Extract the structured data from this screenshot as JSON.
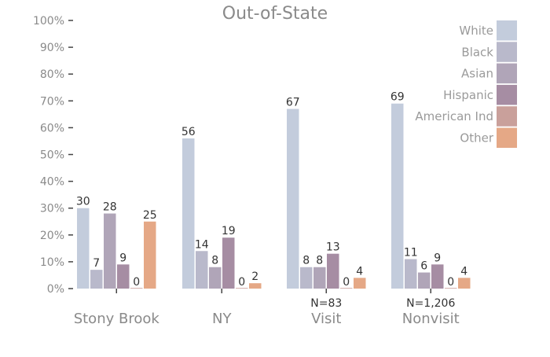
{
  "chart_data": {
    "type": "bar",
    "title": "Out-of-State",
    "xlabel": "",
    "ylabel": "",
    "ylim": [
      0,
      100
    ],
    "y_ticks": [
      "0%",
      "10%",
      "20%",
      "30%",
      "40%",
      "50%",
      "60%",
      "70%",
      "80%",
      "90%",
      "100%"
    ],
    "y_tick_values": [
      0,
      10,
      20,
      30,
      40,
      50,
      60,
      70,
      80,
      90,
      100
    ],
    "categories": [
      "Stony Brook",
      "NY",
      "Visit",
      "Nonvisit"
    ],
    "category_notes": [
      "",
      "",
      "N=83",
      "N=1,206"
    ],
    "series": [
      {
        "name": "White",
        "color": "#c3ccdc",
        "values": [
          30,
          56,
          67,
          69
        ]
      },
      {
        "name": "Black",
        "color": "#b9b9cb",
        "values": [
          7,
          14,
          8,
          11
        ]
      },
      {
        "name": "Asian",
        "color": "#b0a5b8",
        "values": [
          28,
          8,
          8,
          6
        ]
      },
      {
        "name": "Hispanic",
        "color": "#a68da3",
        "values": [
          9,
          19,
          13,
          9
        ]
      },
      {
        "name": "American Ind",
        "color": "#c9a09b",
        "values": [
          0,
          0,
          0,
          0
        ]
      },
      {
        "name": "Other",
        "color": "#e5a886",
        "values": [
          25,
          2,
          4,
          4
        ]
      }
    ],
    "legend_position": "top-right",
    "grid": false
  }
}
